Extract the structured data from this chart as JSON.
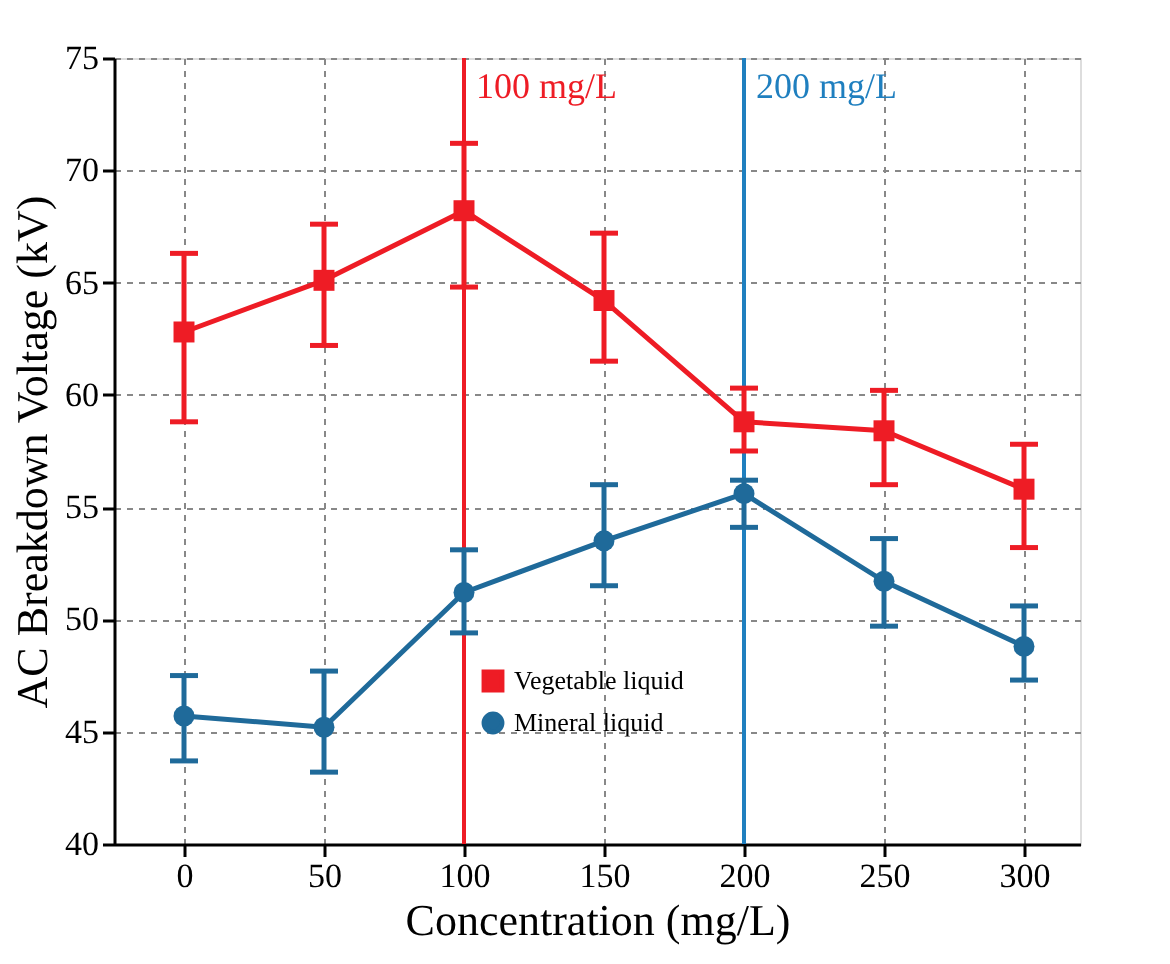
{
  "chart_data": {
    "type": "line",
    "xlabel": "Concentration (mg/L)",
    "ylabel": "AC Breakdown Voltage (kV)",
    "x": [
      0,
      50,
      100,
      150,
      200,
      250,
      300
    ],
    "series": [
      {
        "name": "Vegetable liquid",
        "color": "#ee1c25",
        "marker": "square",
        "values": [
          62.8,
          65.1,
          68.2,
          64.2,
          58.8,
          58.4,
          55.8
        ],
        "errors": [
          [
            58.8,
            66.3
          ],
          [
            62.2,
            67.6
          ],
          [
            64.8,
            71.2
          ],
          [
            61.5,
            67.2
          ],
          [
            57.5,
            60.3
          ],
          [
            56.0,
            60.2
          ],
          [
            53.2,
            57.8
          ]
        ]
      },
      {
        "name": "Mineral liquid",
        "color": "#1f6a9a",
        "marker": "circle",
        "values": [
          45.7,
          45.2,
          51.2,
          53.5,
          55.6,
          51.7,
          48.8
        ],
        "errors": [
          [
            43.7,
            47.5
          ],
          [
            43.2,
            47.7
          ],
          [
            49.4,
            53.1
          ],
          [
            51.5,
            56.0
          ],
          [
            54.1,
            56.2
          ],
          [
            49.7,
            53.6
          ],
          [
            47.3,
            50.6
          ]
        ]
      }
    ],
    "xlim": [
      -25,
      320
    ],
    "xticks": [
      0,
      50,
      100,
      150,
      200,
      250,
      300
    ],
    "ylim": [
      40,
      75
    ],
    "yticks": [
      40,
      45,
      50,
      55,
      60,
      65,
      70,
      75
    ],
    "ref_lines": [
      {
        "axis": "x",
        "value": 100,
        "label": "100 mg/L",
        "color": "#ee1c25"
      },
      {
        "axis": "x",
        "value": 200,
        "label": "200 mg/L",
        "color": "#1f7fbf"
      }
    ],
    "grid": true,
    "legend": "bottom",
    "line_style": "solid"
  }
}
